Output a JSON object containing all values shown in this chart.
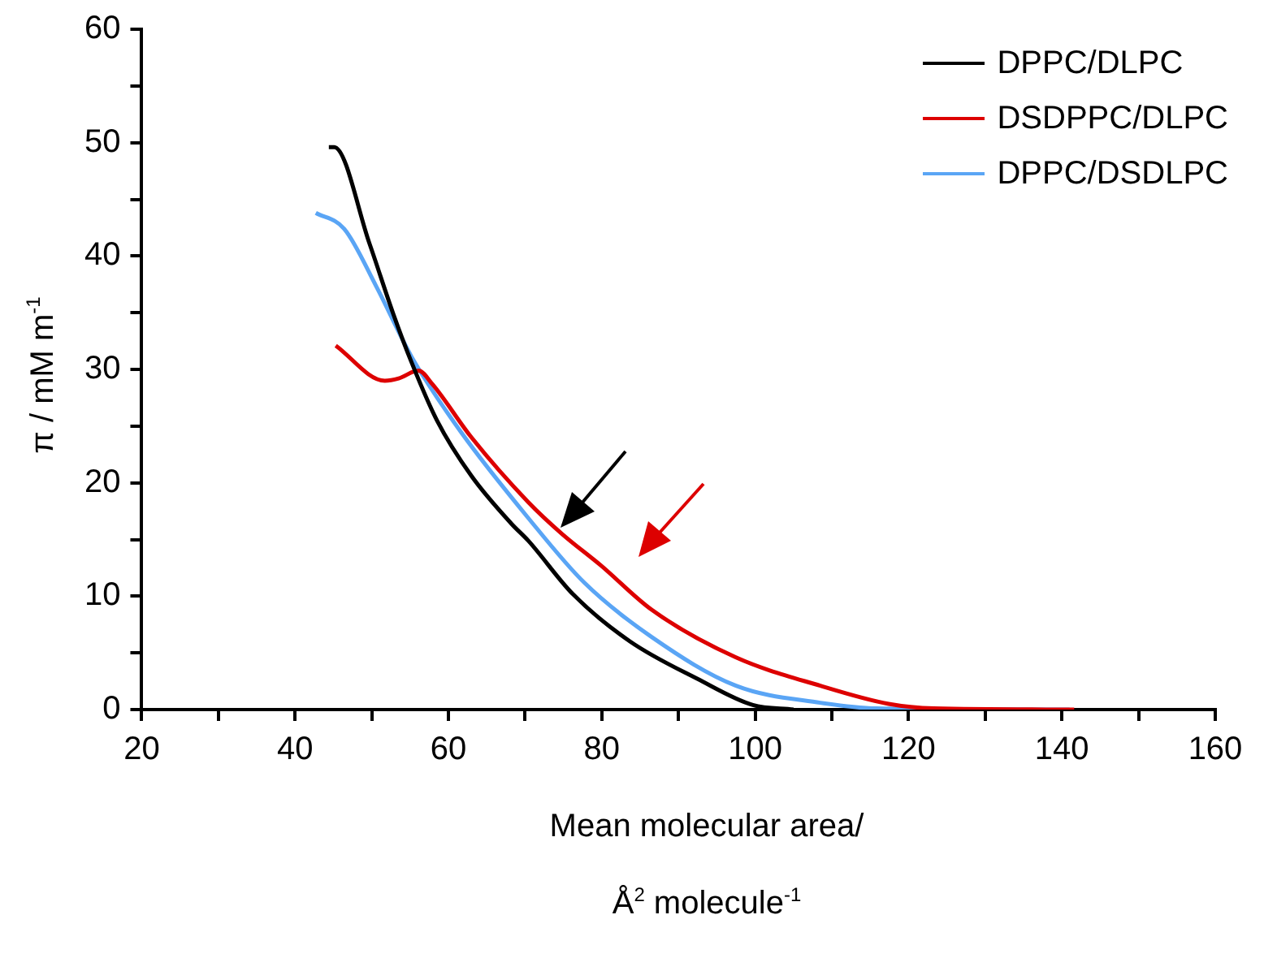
{
  "chart_data": {
    "type": "line",
    "xlabel": "Mean molecular area/\nÅ$^{2}$ molecule$^{-1}$",
    "ylabel": "π / mM m$^{-1}$",
    "xlim": [
      20,
      160
    ],
    "xticks": [
      20,
      {
        "value": 30,
        "label": null
      },
      40,
      {
        "value": 50,
        "label": null
      },
      60,
      {
        "value": 70,
        "label": null
      },
      80,
      {
        "value": 90,
        "label": null
      },
      100,
      {
        "value": 110,
        "label": null
      },
      120,
      {
        "value": 130,
        "label": null
      },
      140,
      {
        "value": 150,
        "label": null
      },
      160
    ],
    "ylim": [
      0,
      60
    ],
    "yticks": [
      0,
      {
        "value": 5,
        "label": null
      },
      10,
      {
        "value": 15,
        "label": null
      },
      20,
      {
        "value": 25,
        "label": null
      },
      30,
      {
        "value": 35,
        "label": null
      },
      40,
      {
        "value": 45,
        "label": null
      },
      50,
      {
        "value": 55,
        "label": null
      },
      60
    ],
    "grid": false,
    "legend": "top right",
    "marker": "none",
    "line_style": "solid",
    "series": [
      {
        "name": "DPPC/DLPC",
        "color": "#000000",
        "x": [
          44.4,
          45.1,
          49.7,
          52.8,
          55.2,
          58.5,
          63,
          68.2,
          70.4,
          76.2,
          83.7,
          92.5,
          99.7,
          105
        ],
        "values": [
          49.6,
          49.6,
          41.1,
          34.9,
          30.6,
          25.5,
          20.6,
          16.4,
          14.9,
          10.2,
          6,
          2.7,
          0.4,
          0
        ]
      },
      {
        "name": "DSDPPC/DLPC",
        "color": "#dd0000",
        "x": [
          45.3,
          51.7,
          53.5,
          56.1,
          57.9,
          63,
          70.4,
          74.8,
          79.9,
          86.5,
          97.5,
          108.5,
          117.4,
          123.3,
          141.6
        ],
        "values": [
          32.1,
          29,
          29.2,
          29.9,
          28.7,
          24,
          18.3,
          15.5,
          12.7,
          8.8,
          4.6,
          2.1,
          0.5,
          0.1,
          0
        ]
      },
      {
        "name": "DPPC/DSDLPC",
        "color": "#5aa5f5",
        "x": [
          42.7,
          46.4,
          50.6,
          55.2,
          61.6,
          70.4,
          77.7,
          86.5,
          97.5,
          108.5,
          115.8,
          141
        ],
        "values": [
          43.8,
          42.4,
          37.3,
          31.1,
          24.5,
          16.9,
          11.2,
          6.4,
          2.1,
          0.6,
          0.1,
          0
        ]
      }
    ]
  }
}
